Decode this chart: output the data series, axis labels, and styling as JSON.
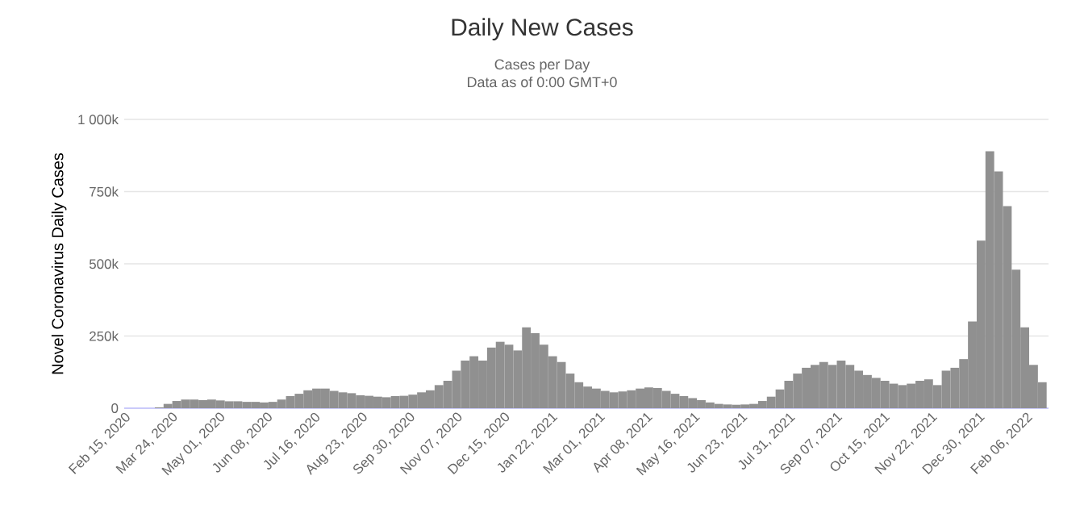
{
  "chart_data": {
    "type": "bar",
    "title": "Daily New Cases",
    "subtitle": "Cases per Day",
    "annotations": [
      "Data as of 0:00 GMT+0"
    ],
    "ylabel": "Novel Coronavirus Daily Cases",
    "color": "#909090",
    "grid": "y",
    "x": [
      "2020-02-15",
      "2020-02-22",
      "2020-02-29",
      "2020-03-07",
      "2020-03-14",
      "2020-03-21",
      "2020-03-28",
      "2020-04-04",
      "2020-04-11",
      "2020-04-18",
      "2020-04-25",
      "2020-05-02",
      "2020-05-09",
      "2020-05-16",
      "2020-05-23",
      "2020-05-30",
      "2020-06-06",
      "2020-06-13",
      "2020-06-20",
      "2020-06-27",
      "2020-07-04",
      "2020-07-11",
      "2020-07-18",
      "2020-07-25",
      "2020-08-01",
      "2020-08-08",
      "2020-08-15",
      "2020-08-22",
      "2020-08-29",
      "2020-09-05",
      "2020-09-12",
      "2020-09-19",
      "2020-09-26",
      "2020-10-03",
      "2020-10-10",
      "2020-10-17",
      "2020-10-24",
      "2020-10-31",
      "2020-11-07",
      "2020-11-14",
      "2020-11-21",
      "2020-11-28",
      "2020-12-05",
      "2020-12-12",
      "2020-12-19",
      "2020-12-26",
      "2021-01-02",
      "2021-01-09",
      "2021-01-16",
      "2021-01-23",
      "2021-01-30",
      "2021-02-06",
      "2021-02-13",
      "2021-02-20",
      "2021-02-27",
      "2021-03-06",
      "2021-03-13",
      "2021-03-20",
      "2021-03-27",
      "2021-04-03",
      "2021-04-10",
      "2021-04-17",
      "2021-04-24",
      "2021-05-01",
      "2021-05-08",
      "2021-05-15",
      "2021-05-22",
      "2021-05-29",
      "2021-06-05",
      "2021-06-12",
      "2021-06-19",
      "2021-06-26",
      "2021-07-03",
      "2021-07-10",
      "2021-07-17",
      "2021-07-24",
      "2021-07-31",
      "2021-08-07",
      "2021-08-14",
      "2021-08-21",
      "2021-08-28",
      "2021-09-04",
      "2021-09-11",
      "2021-09-18",
      "2021-09-25",
      "2021-10-02",
      "2021-10-09",
      "2021-10-16",
      "2021-10-23",
      "2021-10-30",
      "2021-11-06",
      "2021-11-13",
      "2021-11-20",
      "2021-11-27",
      "2021-12-04",
      "2021-12-11",
      "2021-12-18",
      "2021-12-25",
      "2022-01-01",
      "2022-01-08",
      "2022-01-15",
      "2022-01-22",
      "2022-01-29",
      "2022-02-05",
      "2022-02-12",
      "2022-02-19"
    ],
    "values": [
      0,
      0,
      0,
      0,
      3000,
      15000,
      25000,
      30000,
      30000,
      28000,
      30000,
      27000,
      24000,
      24000,
      22000,
      22000,
      20000,
      22000,
      30000,
      42000,
      50000,
      62000,
      68000,
      68000,
      60000,
      55000,
      52000,
      45000,
      43000,
      40000,
      38000,
      42000,
      43000,
      47000,
      55000,
      62000,
      80000,
      95000,
      130000,
      165000,
      180000,
      165000,
      210000,
      230000,
      220000,
      200000,
      280000,
      260000,
      220000,
      180000,
      160000,
      120000,
      90000,
      75000,
      68000,
      60000,
      55000,
      58000,
      62000,
      68000,
      72000,
      70000,
      60000,
      50000,
      42000,
      35000,
      28000,
      20000,
      15000,
      13000,
      12000,
      13000,
      15000,
      25000,
      40000,
      65000,
      95000,
      120000,
      140000,
      150000,
      160000,
      150000,
      165000,
      150000,
      130000,
      115000,
      105000,
      95000,
      85000,
      80000,
      85000,
      95000,
      100000,
      80000,
      130000,
      140000,
      170000,
      300000,
      580000,
      890000,
      820000,
      700000,
      480000,
      280000,
      150000,
      90000
    ],
    "xlim": [
      "2020-02-15",
      "2022-02-24"
    ],
    "xticks": [
      {
        "value": "2020-02-15",
        "label": "Feb 15, 2020"
      },
      {
        "value": "2020-03-24",
        "label": "Mar 24, 2020"
      },
      {
        "value": "2020-05-01",
        "label": "May 01, 2020"
      },
      {
        "value": "2020-06-08",
        "label": "Jun 08, 2020"
      },
      {
        "value": "2020-07-16",
        "label": "Jul 16, 2020"
      },
      {
        "value": "2020-08-23",
        "label": "Aug 23, 2020"
      },
      {
        "value": "2020-09-30",
        "label": "Sep 30, 2020"
      },
      {
        "value": "2020-11-07",
        "label": "Nov 07, 2020"
      },
      {
        "value": "2020-12-15",
        "label": "Dec 15, 2020"
      },
      {
        "value": "2021-01-22",
        "label": "Jan 22, 2021"
      },
      {
        "value": "2021-03-01",
        "label": "Mar 01, 2021"
      },
      {
        "value": "2021-04-08",
        "label": "Apr 08, 2021"
      },
      {
        "value": "2021-05-16",
        "label": "May 16, 2021"
      },
      {
        "value": "2021-06-23",
        "label": "Jun 23, 2021"
      },
      {
        "value": "2021-07-31",
        "label": "Jul 31, 2021"
      },
      {
        "value": "2021-09-07",
        "label": "Sep 07, 2021"
      },
      {
        "value": "2021-10-15",
        "label": "Oct 15, 2021"
      },
      {
        "value": "2021-11-22",
        "label": "Nov 22, 2021"
      },
      {
        "value": "2021-12-30",
        "label": "Dec 30, 2021"
      },
      {
        "value": "2022-02-06",
        "label": "Feb 06, 2022"
      }
    ],
    "ylim": [
      0,
      1000000
    ],
    "yticks": [
      {
        "value": 0,
        "label": "0"
      },
      {
        "value": 250000,
        "label": "250k"
      },
      {
        "value": 500000,
        "label": "500k"
      },
      {
        "value": 750000,
        "label": "750k"
      },
      {
        "value": 1000000,
        "label": "1 000k"
      }
    ]
  }
}
